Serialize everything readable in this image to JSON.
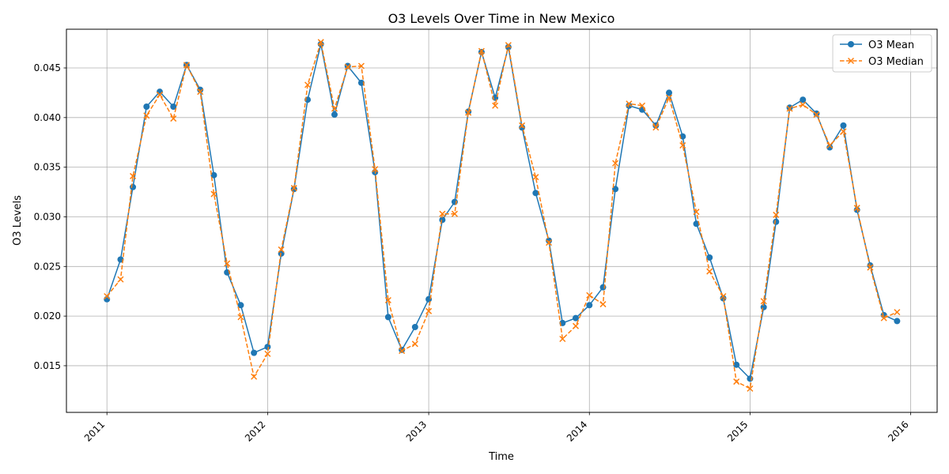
{
  "chart_data": {
    "type": "line",
    "title": "O3 Levels Over Time in New Mexico",
    "xlabel": "Time",
    "ylabel": "O3 Levels",
    "xlim": [
      "2010-10-01",
      "2016-03-01"
    ],
    "ylim": [
      0.0103,
      0.0489
    ],
    "grid": true,
    "legend_position": "top-right",
    "x_ticks": [
      "2011",
      "2012",
      "2013",
      "2014",
      "2015",
      "2016"
    ],
    "y_ticks": [
      "0.015",
      "0.020",
      "0.025",
      "0.030",
      "0.035",
      "0.040",
      "0.045"
    ],
    "x": [
      "2011-01-01",
      "2011-02-01",
      "2011-03-01",
      "2011-04-01",
      "2011-05-01",
      "2011-06-01",
      "2011-07-01",
      "2011-08-01",
      "2011-09-01",
      "2011-10-01",
      "2011-11-01",
      "2011-12-01",
      "2012-01-01",
      "2012-02-01",
      "2012-03-01",
      "2012-04-01",
      "2012-05-01",
      "2012-06-01",
      "2012-07-01",
      "2012-08-01",
      "2012-09-01",
      "2012-10-01",
      "2012-11-01",
      "2012-12-01",
      "2013-01-01",
      "2013-02-01",
      "2013-03-01",
      "2013-04-01",
      "2013-05-01",
      "2013-06-01",
      "2013-07-01",
      "2013-08-01",
      "2013-09-01",
      "2013-10-01",
      "2013-11-01",
      "2013-12-01",
      "2014-01-01",
      "2014-02-01",
      "2014-03-01",
      "2014-04-01",
      "2014-05-01",
      "2014-06-01",
      "2014-07-01",
      "2014-08-01",
      "2014-09-01",
      "2014-10-01",
      "2014-11-01",
      "2014-12-01",
      "2015-01-01",
      "2015-02-01",
      "2015-03-01",
      "2015-04-01",
      "2015-05-01",
      "2015-06-01",
      "2015-07-01",
      "2015-08-01",
      "2015-09-01",
      "2015-10-01",
      "2015-11-01",
      "2015-12-01"
    ],
    "series": [
      {
        "name": "O3 Mean",
        "color": "#1f77b4",
        "marker": "circle",
        "line_style": "solid",
        "values": [
          0.0217,
          0.0257,
          0.033,
          0.0411,
          0.0426,
          0.0411,
          0.0453,
          0.0428,
          0.0342,
          0.0244,
          0.0211,
          0.0163,
          0.0169,
          0.0263,
          0.0328,
          0.0418,
          0.0474,
          0.0403,
          0.0452,
          0.0435,
          0.0345,
          0.0199,
          0.0166,
          0.0189,
          0.0217,
          0.0297,
          0.0315,
          0.0406,
          0.0466,
          0.042,
          0.0471,
          0.039,
          0.0324,
          0.0276,
          0.0193,
          0.0198,
          0.0211,
          0.0229,
          0.0328,
          0.0412,
          0.0408,
          0.0392,
          0.0425,
          0.0381,
          0.0293,
          0.0259,
          0.0218,
          0.0151,
          0.0137,
          0.0209,
          0.0295,
          0.041,
          0.0418,
          0.0404,
          0.037,
          0.0392,
          0.0307,
          0.0251,
          0.0201,
          0.0195
        ]
      },
      {
        "name": "O3 Median",
        "color": "#ff7f0e",
        "marker": "x",
        "line_style": "dashed",
        "values": [
          0.022,
          0.0237,
          0.0341,
          0.0402,
          0.0423,
          0.0399,
          0.0453,
          0.0426,
          0.0323,
          0.0253,
          0.0199,
          0.0139,
          0.0162,
          0.0267,
          0.0329,
          0.0433,
          0.0476,
          0.0409,
          0.0451,
          0.0452,
          0.0348,
          0.0216,
          0.0165,
          0.0172,
          0.0205,
          0.0303,
          0.0303,
          0.0405,
          0.0467,
          0.0412,
          0.0473,
          0.0392,
          0.034,
          0.0274,
          0.0177,
          0.019,
          0.0221,
          0.0212,
          0.0354,
          0.0414,
          0.0412,
          0.039,
          0.042,
          0.0372,
          0.0305,
          0.0245,
          0.022,
          0.0134,
          0.0127,
          0.0215,
          0.0302,
          0.0409,
          0.0413,
          0.0403,
          0.0372,
          0.0386,
          0.0309,
          0.0249,
          0.0198,
          0.0204
        ]
      }
    ]
  }
}
